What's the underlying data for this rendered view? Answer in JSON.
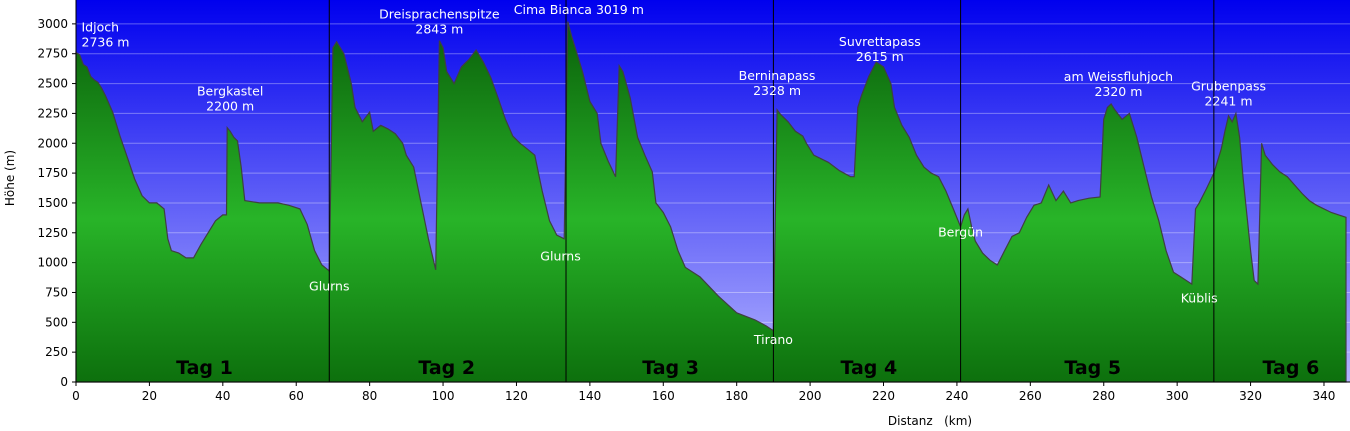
{
  "chart_data": {
    "type": "area",
    "xlabel": "Distanz   (km)",
    "ylabel": "Höhe (m)",
    "xlim": [
      0,
      346
    ],
    "ylim": [
      0,
      3200
    ],
    "x_ticks": [
      0,
      20,
      40,
      60,
      80,
      100,
      120,
      140,
      160,
      180,
      200,
      220,
      240,
      260,
      280,
      300,
      320,
      340
    ],
    "y_ticks": [
      0,
      250,
      500,
      750,
      1000,
      1250,
      1500,
      1750,
      2000,
      2250,
      2500,
      2750,
      3000
    ],
    "grid": "horizontal",
    "colors": {
      "sky_top": "#0000ee",
      "sky_bottom": "#b4b4ff",
      "fill_top": "#0a5f0a",
      "fill_mid": "#28b428",
      "fill_bottom": "#0d700d",
      "outline": "#404040",
      "day_divider": "#000000"
    },
    "day_dividers": [
      69,
      133.5,
      190,
      241,
      310
    ],
    "days": [
      {
        "label": "Tag 1",
        "x": 35
      },
      {
        "label": "Tag 2",
        "x": 101
      },
      {
        "label": "Tag 3",
        "x": 162
      },
      {
        "label": "Tag 4",
        "x": 216
      },
      {
        "label": "Tag 5",
        "x": 277
      },
      {
        "label": "Tag 6",
        "x": 331
      }
    ],
    "annotations": [
      {
        "name": "Idjoch",
        "elev": "2736 m",
        "x": 1.5,
        "y": 2736,
        "align": "start"
      },
      {
        "name": "Bergkastel",
        "elev": "2200 m",
        "x": 42,
        "y": 2200,
        "align": "middle"
      },
      {
        "name": "Dreisprachenspitze",
        "elev": "2843 m",
        "x": 99,
        "y": 2843,
        "align": "middle"
      },
      {
        "name": "Cima Bianca 3019 m",
        "elev": "",
        "x": 137,
        "y": 3019,
        "align": "middle"
      },
      {
        "name": "Berninapass",
        "elev": "2328 m",
        "x": 191,
        "y": 2328,
        "align": "middle"
      },
      {
        "name": "Suvrettapass",
        "elev": "2615 m",
        "x": 219,
        "y": 2615,
        "align": "middle"
      },
      {
        "name": "am Weissfluhjoch",
        "elev": "2320 m",
        "x": 284,
        "y": 2320,
        "align": "middle"
      },
      {
        "name": "Grubenpass",
        "elev": "2241 m",
        "x": 314,
        "y": 2241,
        "align": "middle"
      },
      {
        "name": "Glurns",
        "elev": "",
        "x": 69,
        "y": 700,
        "align": "middle"
      },
      {
        "name": "Glurns",
        "elev": "",
        "x": 132,
        "y": 950,
        "align": "middle"
      },
      {
        "name": "Tirano",
        "elev": "",
        "x": 190,
        "y": 250,
        "align": "middle"
      },
      {
        "name": "Bergün",
        "elev": "",
        "x": 241,
        "y": 1150,
        "align": "middle"
      },
      {
        "name": "Küblis",
        "elev": "",
        "x": 306,
        "y": 600,
        "align": "middle"
      }
    ],
    "profile": [
      [
        0,
        2760
      ],
      [
        1,
        2740
      ],
      [
        2,
        2660
      ],
      [
        3,
        2640
      ],
      [
        4,
        2560
      ],
      [
        5,
        2530
      ],
      [
        6,
        2510
      ],
      [
        7,
        2460
      ],
      [
        8,
        2400
      ],
      [
        10,
        2260
      ],
      [
        12,
        2060
      ],
      [
        14,
        1880
      ],
      [
        16,
        1700
      ],
      [
        18,
        1560
      ],
      [
        20,
        1500
      ],
      [
        22,
        1500
      ],
      [
        24,
        1450
      ],
      [
        25,
        1200
      ],
      [
        26,
        1100
      ],
      [
        28,
        1080
      ],
      [
        30,
        1040
      ],
      [
        32,
        1040
      ],
      [
        34,
        1150
      ],
      [
        36,
        1250
      ],
      [
        38,
        1350
      ],
      [
        40,
        1400
      ],
      [
        41,
        1400
      ],
      [
        41.2,
        2130
      ],
      [
        42,
        2100
      ],
      [
        43,
        2050
      ],
      [
        44,
        2020
      ],
      [
        45,
        1800
      ],
      [
        46,
        1520
      ],
      [
        50,
        1500
      ],
      [
        55,
        1500
      ],
      [
        58,
        1480
      ],
      [
        61,
        1450
      ],
      [
        63,
        1320
      ],
      [
        65,
        1100
      ],
      [
        67,
        980
      ],
      [
        69,
        930
      ],
      [
        70,
        2800
      ],
      [
        71,
        2850
      ],
      [
        73,
        2750
      ],
      [
        75,
        2500
      ],
      [
        76,
        2300
      ],
      [
        78,
        2180
      ],
      [
        80,
        2260
      ],
      [
        81,
        2100
      ],
      [
        83,
        2150
      ],
      [
        85,
        2120
      ],
      [
        87,
        2080
      ],
      [
        89,
        2000
      ],
      [
        90,
        1900
      ],
      [
        92,
        1800
      ],
      [
        94,
        1500
      ],
      [
        96,
        1200
      ],
      [
        98,
        940
      ],
      [
        99,
        2860
      ],
      [
        100,
        2800
      ],
      [
        101,
        2600
      ],
      [
        103,
        2500
      ],
      [
        105,
        2640
      ],
      [
        107,
        2700
      ],
      [
        109,
        2780
      ],
      [
        111,
        2680
      ],
      [
        113,
        2550
      ],
      [
        115,
        2380
      ],
      [
        117,
        2200
      ],
      [
        119,
        2060
      ],
      [
        121,
        2000
      ],
      [
        123,
        1950
      ],
      [
        125,
        1900
      ],
      [
        127,
        1600
      ],
      [
        129,
        1350
      ],
      [
        131,
        1230
      ],
      [
        133,
        1200
      ],
      [
        134,
        3019
      ],
      [
        135,
        2900
      ],
      [
        136,
        2800
      ],
      [
        138,
        2600
      ],
      [
        140,
        2350
      ],
      [
        142,
        2250
      ],
      [
        143,
        2000
      ],
      [
        145,
        1850
      ],
      [
        147,
        1720
      ],
      [
        148,
        2650
      ],
      [
        149,
        2600
      ],
      [
        151,
        2380
      ],
      [
        153,
        2050
      ],
      [
        155,
        1900
      ],
      [
        157,
        1760
      ],
      [
        158,
        1500
      ],
      [
        160,
        1420
      ],
      [
        162,
        1300
      ],
      [
        164,
        1100
      ],
      [
        166,
        960
      ],
      [
        170,
        880
      ],
      [
        175,
        720
      ],
      [
        180,
        580
      ],
      [
        185,
        520
      ],
      [
        188,
        470
      ],
      [
        190,
        430
      ],
      [
        191,
        2280
      ],
      [
        192,
        2240
      ],
      [
        194,
        2180
      ],
      [
        196,
        2100
      ],
      [
        198,
        2060
      ],
      [
        199,
        2000
      ],
      [
        201,
        1900
      ],
      [
        205,
        1840
      ],
      [
        208,
        1770
      ],
      [
        211,
        1720
      ],
      [
        212,
        1720
      ],
      [
        213,
        2300
      ],
      [
        214,
        2400
      ],
      [
        216,
        2560
      ],
      [
        218,
        2680
      ],
      [
        220,
        2640
      ],
      [
        222,
        2500
      ],
      [
        223,
        2300
      ],
      [
        225,
        2150
      ],
      [
        227,
        2050
      ],
      [
        229,
        1900
      ],
      [
        231,
        1800
      ],
      [
        233,
        1750
      ],
      [
        235,
        1720
      ],
      [
        237,
        1600
      ],
      [
        239,
        1450
      ],
      [
        241,
        1300
      ],
      [
        242,
        1400
      ],
      [
        243,
        1450
      ],
      [
        244,
        1300
      ],
      [
        245,
        1180
      ],
      [
        247,
        1080
      ],
      [
        249,
        1020
      ],
      [
        251,
        980
      ],
      [
        253,
        1100
      ],
      [
        255,
        1220
      ],
      [
        257,
        1250
      ],
      [
        259,
        1380
      ],
      [
        261,
        1480
      ],
      [
        263,
        1500
      ],
      [
        265,
        1650
      ],
      [
        267,
        1520
      ],
      [
        269,
        1600
      ],
      [
        271,
        1500
      ],
      [
        273,
        1520
      ],
      [
        276,
        1540
      ],
      [
        279,
        1550
      ],
      [
        280,
        2200
      ],
      [
        281,
        2300
      ],
      [
        282,
        2330
      ],
      [
        283,
        2280
      ],
      [
        285,
        2200
      ],
      [
        287,
        2250
      ],
      [
        289,
        2050
      ],
      [
        291,
        1800
      ],
      [
        293,
        1550
      ],
      [
        295,
        1350
      ],
      [
        297,
        1100
      ],
      [
        299,
        920
      ],
      [
        301,
        880
      ],
      [
        303,
        840
      ],
      [
        304,
        820
      ],
      [
        305,
        1450
      ],
      [
        306,
        1500
      ],
      [
        308,
        1620
      ],
      [
        310,
        1750
      ],
      [
        311,
        1850
      ],
      [
        312,
        1950
      ],
      [
        313,
        2100
      ],
      [
        314,
        2230
      ],
      [
        315,
        2180
      ],
      [
        316,
        2250
      ],
      [
        317,
        2050
      ],
      [
        318,
        1700
      ],
      [
        319,
        1400
      ],
      [
        320,
        1100
      ],
      [
        321,
        850
      ],
      [
        322,
        820
      ],
      [
        323,
        2000
      ],
      [
        324,
        1900
      ],
      [
        326,
        1820
      ],
      [
        328,
        1760
      ],
      [
        330,
        1720
      ],
      [
        332,
        1650
      ],
      [
        334,
        1580
      ],
      [
        336,
        1520
      ],
      [
        338,
        1480
      ],
      [
        340,
        1450
      ],
      [
        342,
        1420
      ],
      [
        344,
        1400
      ],
      [
        346,
        1380
      ]
    ]
  }
}
